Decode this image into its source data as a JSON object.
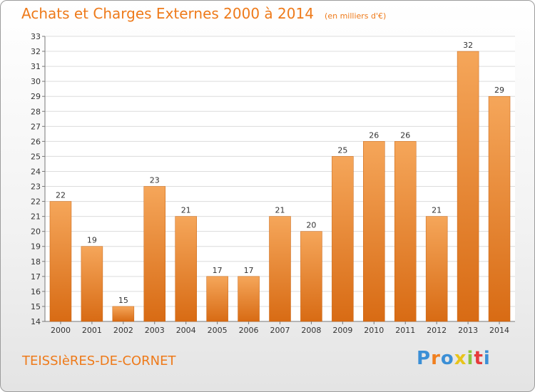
{
  "title": "Achats et Charges Externes 2000 à 2014",
  "subtitle": "(en milliers d'€)",
  "place": "TEISSIèRES-DE-CORNET",
  "logo": {
    "letters": [
      "P",
      "r",
      "o",
      "x",
      "i",
      "t",
      "i"
    ],
    "colors": [
      "#3b8fd6",
      "#f07f1f",
      "#3b8fd6",
      "#e8c41a",
      "#8cc63e",
      "#e63b3b",
      "#3b8fd6"
    ]
  },
  "colors": {
    "accent": "#ee7a1a",
    "bar_top": "#f5a65a",
    "bar_bottom": "#d86b14",
    "bar_edge": "#c8620f",
    "grid": "#dcdcdc"
  },
  "chart_data": {
    "type": "bar",
    "title": "Achats et Charges Externes 2000 à 2014",
    "subtitle": "(en milliers d'€)",
    "categories": [
      "2000",
      "2001",
      "2002",
      "2003",
      "2004",
      "2005",
      "2006",
      "2007",
      "2008",
      "2009",
      "2010",
      "2011",
      "2012",
      "2013",
      "2014"
    ],
    "values": [
      22,
      19,
      15,
      23,
      21,
      17,
      17,
      21,
      20,
      25,
      26,
      26,
      21,
      32,
      29
    ],
    "ylim": [
      14,
      33
    ],
    "yticks": [
      14,
      15,
      16,
      17,
      18,
      19,
      20,
      21,
      22,
      23,
      24,
      25,
      26,
      27,
      28,
      29,
      30,
      31,
      32,
      33
    ],
    "grid": true,
    "legend": "none",
    "data_labels": true
  }
}
